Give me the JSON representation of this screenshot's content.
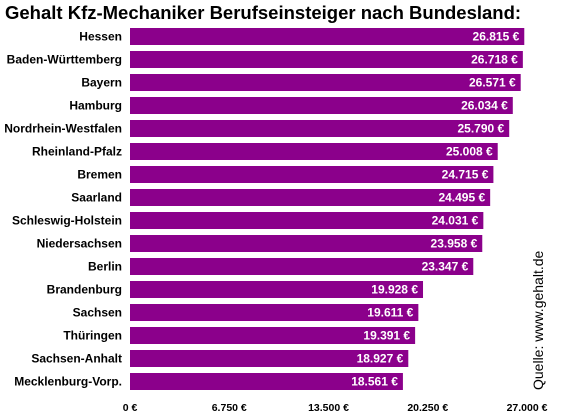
{
  "chart_data": {
    "type": "bar",
    "orientation": "horizontal",
    "title": "Gehalt Kfz-Mechaniker Berufseinsteiger nach Bundesland:",
    "categories": [
      "Hessen",
      "Baden-Württemberg",
      "Bayern",
      "Hamburg",
      "Nordrhein-Westfalen",
      "Rheinland-Pfalz",
      "Bremen",
      "Saarland",
      "Schleswig-Holstein",
      "Niedersachsen",
      "Berlin",
      "Brandenburg",
      "Sachsen",
      "Thüringen",
      "Sachsen-Anhalt",
      "Mecklenburg-Vorp."
    ],
    "values": [
      26815,
      26718,
      26571,
      26034,
      25790,
      25008,
      24715,
      24495,
      24031,
      23958,
      23347,
      19928,
      19611,
      19391,
      18927,
      18561
    ],
    "value_labels": [
      "26.815 €",
      "26.718 €",
      "26.571 €",
      "26.034 €",
      "25.790 €",
      "25.008 €",
      "24.715 €",
      "24.495 €",
      "24.031 €",
      "23.958 €",
      "23.347 €",
      "19.928 €",
      "19.611 €",
      "19.391 €",
      "18.927 €",
      "18.561 €"
    ],
    "xlim": [
      0,
      27000
    ],
    "x_ticks": [
      0,
      6750,
      13500,
      20250,
      27000
    ],
    "x_tick_labels": [
      "0 €",
      "6.750 €",
      "13.500 €",
      "20.250 €",
      "27.000 €"
    ],
    "source": "Quelle: www.gehalt.de",
    "bar_color": "#8B008B",
    "grid": false,
    "legend": "none"
  }
}
